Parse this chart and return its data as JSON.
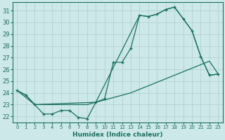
{
  "xlabel": "Humidex (Indice chaleur)",
  "bg_color": "#cde8e8",
  "grid_color": "#b8d4d4",
  "line_color": "#1a7060",
  "xlim": [
    -0.5,
    23.5
  ],
  "ylim": [
    21.5,
    31.7
  ],
  "xticks": [
    0,
    1,
    2,
    3,
    4,
    5,
    6,
    7,
    8,
    9,
    10,
    11,
    12,
    13,
    14,
    15,
    16,
    17,
    18,
    19,
    20,
    21,
    22,
    23
  ],
  "yticks": [
    22,
    23,
    24,
    25,
    26,
    27,
    28,
    29,
    30,
    31
  ],
  "line1_x": [
    0,
    1,
    2,
    3,
    4,
    5,
    6,
    7,
    8,
    9,
    10,
    11,
    12,
    13,
    14,
    15,
    16,
    17,
    18,
    19,
    20,
    21,
    22,
    23
  ],
  "line1_y": [
    24.2,
    23.8,
    23.0,
    23.0,
    23.0,
    23.0,
    23.0,
    23.0,
    23.0,
    23.2,
    23.4,
    23.6,
    23.8,
    24.0,
    24.3,
    24.6,
    24.9,
    25.2,
    25.5,
    25.8,
    26.1,
    26.4,
    26.7,
    25.6
  ],
  "line2_x": [
    0,
    1,
    2,
    3,
    4,
    5,
    6,
    7,
    8,
    9,
    10,
    11,
    12,
    13,
    14,
    15,
    16,
    17,
    18,
    19,
    20,
    21,
    22,
    23
  ],
  "line2_y": [
    24.2,
    23.8,
    23.0,
    22.2,
    22.2,
    22.5,
    22.5,
    21.9,
    21.8,
    23.2,
    23.5,
    26.6,
    26.6,
    27.8,
    30.6,
    30.5,
    30.7,
    31.1,
    31.3,
    30.3,
    29.3,
    27.1,
    25.5,
    25.6
  ],
  "line3_x": [
    0,
    2,
    9,
    14,
    15,
    16,
    17,
    18,
    19,
    20,
    21,
    22,
    23
  ],
  "line3_y": [
    24.2,
    23.0,
    23.2,
    30.6,
    30.5,
    30.7,
    31.1,
    31.3,
    30.3,
    29.3,
    27.1,
    25.5,
    25.6
  ]
}
